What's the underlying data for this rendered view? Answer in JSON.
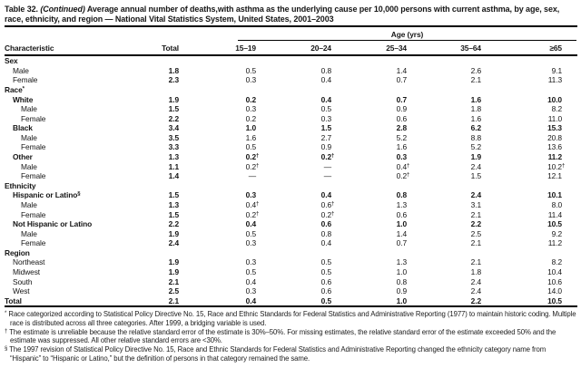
{
  "title": {
    "label": "Table 32.",
    "continued": "(Continued)",
    "rest": "Average annual number of deaths,with asthma as the underlying cause per 10,000 persons with current asthma, by age, sex, race, ethnicity, and region — National Vital Statistics System, United States, 2001–2003"
  },
  "table": {
    "age_group_header": "Age (yrs)",
    "columns": [
      "Characteristic",
      "Total",
      "15–19",
      "20–24",
      "25–34",
      "35–64",
      "≥65"
    ],
    "rows": [
      {
        "label": "Sex",
        "type": "section",
        "indent": 0
      },
      {
        "label": "Male",
        "type": "data",
        "indent": 1,
        "bold": false,
        "values": [
          "1.8",
          "0.5",
          "0.8",
          "1.4",
          "2.6",
          "9.1"
        ]
      },
      {
        "label": "Female",
        "type": "data",
        "indent": 1,
        "bold": false,
        "values": [
          "2.3",
          "0.3",
          "0.4",
          "0.7",
          "2.1",
          "11.3"
        ]
      },
      {
        "label": "Race",
        "sup": "*",
        "type": "section",
        "indent": 0
      },
      {
        "label": "White",
        "type": "data",
        "indent": 1,
        "bold": true,
        "values": [
          "1.9",
          "0.2",
          "0.4",
          "0.7",
          "1.6",
          "10.0"
        ]
      },
      {
        "label": "Male",
        "type": "data",
        "indent": 2,
        "bold": false,
        "values": [
          "1.5",
          "0.3",
          "0.5",
          "0.9",
          "1.8",
          "8.2"
        ]
      },
      {
        "label": "Female",
        "type": "data",
        "indent": 2,
        "bold": false,
        "values": [
          "2.2",
          "0.2",
          "0.3",
          "0.6",
          "1.6",
          "11.0"
        ]
      },
      {
        "label": "Black",
        "type": "data",
        "indent": 1,
        "bold": true,
        "values": [
          "3.4",
          "1.0",
          "1.5",
          "2.8",
          "6.2",
          "15.3"
        ]
      },
      {
        "label": "Male",
        "type": "data",
        "indent": 2,
        "bold": false,
        "values": [
          "3.5",
          "1.6",
          "2.7",
          "5.2",
          "8.8",
          "20.8"
        ]
      },
      {
        "label": "Female",
        "type": "data",
        "indent": 2,
        "bold": false,
        "values": [
          "3.3",
          "0.5",
          "0.9",
          "1.6",
          "5.2",
          "13.6"
        ]
      },
      {
        "label": "Other",
        "type": "data",
        "indent": 1,
        "bold": true,
        "values": [
          "1.3",
          "0.2†",
          "0.2†",
          "0.3",
          "1.9",
          "11.2"
        ]
      },
      {
        "label": "Male",
        "type": "data",
        "indent": 2,
        "bold": false,
        "values": [
          "1.1",
          "0.2†",
          "—",
          "0.4†",
          "2.4",
          "10.2†"
        ]
      },
      {
        "label": "Female",
        "type": "data",
        "indent": 2,
        "bold": false,
        "values": [
          "1.4",
          "—",
          "—",
          "0.2†",
          "1.5",
          "12.1"
        ]
      },
      {
        "label": "Ethnicity",
        "type": "section",
        "indent": 0
      },
      {
        "label": "Hispanic or Latino",
        "sup": "§",
        "type": "data",
        "indent": 1,
        "bold": true,
        "values": [
          "1.5",
          "0.3",
          "0.4",
          "0.8",
          "2.4",
          "10.1"
        ]
      },
      {
        "label": "Male",
        "type": "data",
        "indent": 2,
        "bold": false,
        "values": [
          "1.3",
          "0.4†",
          "0.6†",
          "1.3",
          "3.1",
          "8.0"
        ]
      },
      {
        "label": "Female",
        "type": "data",
        "indent": 2,
        "bold": false,
        "values": [
          "1.5",
          "0.2†",
          "0.2†",
          "0.6",
          "2.1",
          "11.4"
        ]
      },
      {
        "label": "Not Hispanic or Latino",
        "type": "data",
        "indent": 1,
        "bold": true,
        "values": [
          "2.2",
          "0.4",
          "0.6",
          "1.0",
          "2.2",
          "10.5"
        ]
      },
      {
        "label": "Male",
        "type": "data",
        "indent": 2,
        "bold": false,
        "values": [
          "1.9",
          "0.5",
          "0.8",
          "1.4",
          "2.5",
          "9.2"
        ]
      },
      {
        "label": "Female",
        "type": "data",
        "indent": 2,
        "bold": false,
        "values": [
          "2.4",
          "0.3",
          "0.4",
          "0.7",
          "2.1",
          "11.2"
        ]
      },
      {
        "label": "Region",
        "type": "section",
        "indent": 0
      },
      {
        "label": "Northeast",
        "type": "data",
        "indent": 1,
        "bold": false,
        "values": [
          "1.9",
          "0.3",
          "0.5",
          "1.3",
          "2.1",
          "8.2"
        ]
      },
      {
        "label": "Midwest",
        "type": "data",
        "indent": 1,
        "bold": false,
        "values": [
          "1.9",
          "0.5",
          "0.5",
          "1.0",
          "1.8",
          "10.4"
        ]
      },
      {
        "label": "South",
        "type": "data",
        "indent": 1,
        "bold": false,
        "values": [
          "2.1",
          "0.4",
          "0.6",
          "0.8",
          "2.4",
          "10.6"
        ]
      },
      {
        "label": "West",
        "type": "data",
        "indent": 1,
        "bold": false,
        "values": [
          "2.5",
          "0.3",
          "0.6",
          "0.9",
          "2.4",
          "14.0"
        ]
      },
      {
        "label": "Total",
        "type": "data",
        "indent": 0,
        "bold": true,
        "values": [
          "2.1",
          "0.4",
          "0.5",
          "1.0",
          "2.2",
          "10.5"
        ]
      }
    ]
  },
  "footnotes": [
    {
      "marker": "*",
      "text": "Race categorized according to Statistical Policy Directive No. 15, Race and Ethnic Standards for Federal Statistics and Administrative Reporting (1977) to maintain historic coding. Multiple race is distributed across all three categories. After 1999, a bridging variable is used."
    },
    {
      "marker": "†",
      "text": "The estimate is unreliable because the relative standard error of the estimate is 30%–50%. For missing estimates, the relative standard error of the estimate exceeded 50% and the estimate was suppressed. All other relative standard errors are <30%."
    },
    {
      "marker": "§",
      "text": "The 1997 revision of Statistical Policy Directive No. 15, Race and Ethnic Standards for Federal Statistics and Administrative Reporting changed the ethnicity category name from “Hispanic” to “Hispanic or Latino,” but the definition of persons in that category remained the same."
    }
  ]
}
